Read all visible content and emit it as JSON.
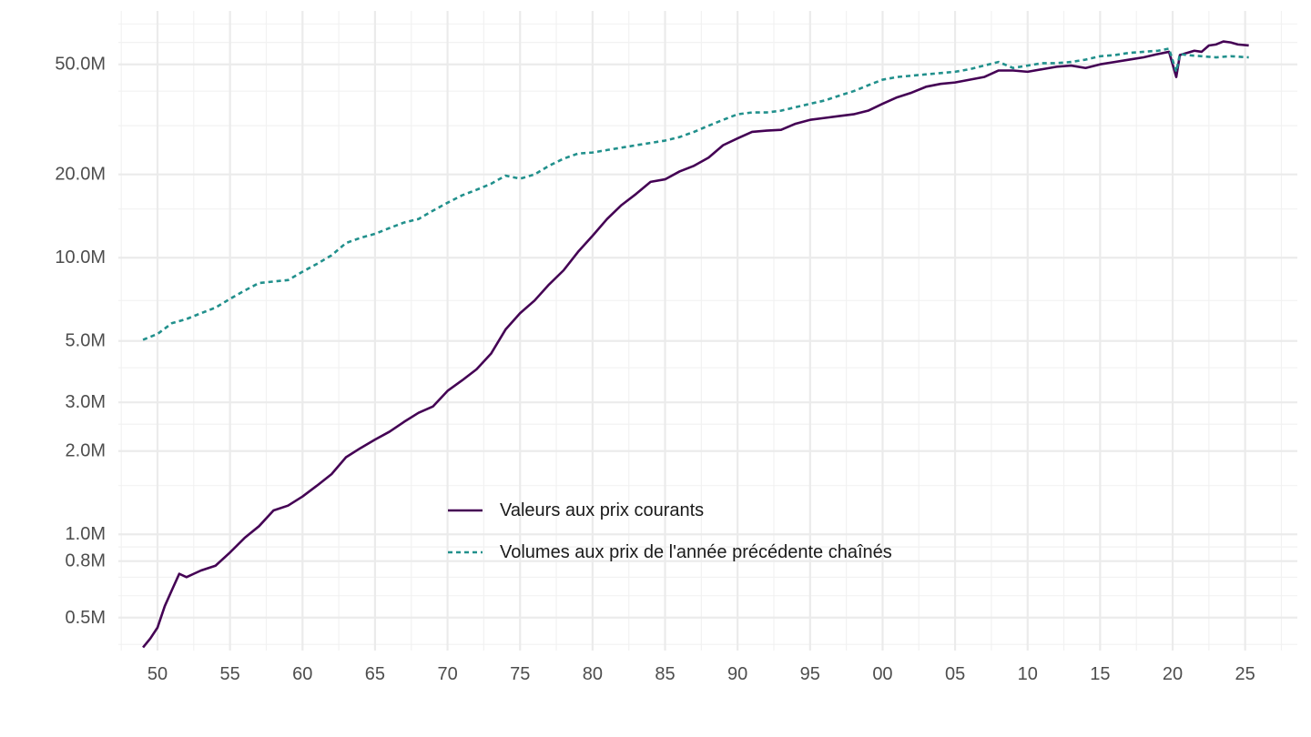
{
  "chart_data": {
    "type": "line",
    "title": "",
    "xlabel": "",
    "ylabel": "",
    "x_range": [
      1947.3,
      2028.6
    ],
    "y_scale": "log",
    "y_range": [
      0.38,
      78
    ],
    "grid": true,
    "legend_position": "bottom-center-inside",
    "x_ticks": [
      {
        "value": 1950,
        "label": "50"
      },
      {
        "value": 1955,
        "label": "55"
      },
      {
        "value": 1960,
        "label": "60"
      },
      {
        "value": 1965,
        "label": "65"
      },
      {
        "value": 1970,
        "label": "70"
      },
      {
        "value": 1975,
        "label": "75"
      },
      {
        "value": 1980,
        "label": "80"
      },
      {
        "value": 1985,
        "label": "85"
      },
      {
        "value": 1990,
        "label": "90"
      },
      {
        "value": 1995,
        "label": "95"
      },
      {
        "value": 2000,
        "label": "00"
      },
      {
        "value": 2005,
        "label": "05"
      },
      {
        "value": 2010,
        "label": "10"
      },
      {
        "value": 2015,
        "label": "15"
      },
      {
        "value": 2020,
        "label": "20"
      },
      {
        "value": 2025,
        "label": "25"
      }
    ],
    "y_ticks": [
      {
        "value": 0.5,
        "label": "0.5M"
      },
      {
        "value": 0.8,
        "label": "0.8M"
      },
      {
        "value": 1,
        "label": "1.0M"
      },
      {
        "value": 2,
        "label": "2.0M"
      },
      {
        "value": 3,
        "label": "3.0M"
      },
      {
        "value": 5,
        "label": "5.0M"
      },
      {
        "value": 10,
        "label": "10.0M"
      },
      {
        "value": 20,
        "label": "20.0M"
      },
      {
        "value": 50,
        "label": "50.0M"
      }
    ],
    "y_minor_gridlines": [
      0.4,
      0.6,
      0.7,
      0.9,
      1.5,
      2.5,
      4,
      7,
      15,
      30,
      40,
      60,
      70
    ],
    "series": [
      {
        "name": "Valeurs aux prix courants",
        "color": "#440154",
        "dash": "solid",
        "x": [
          1949,
          1949.5,
          1950,
          1950.5,
          1951,
          1951.5,
          1952,
          1952.5,
          1953,
          1954,
          1955,
          1956,
          1957,
          1958,
          1959,
          1960,
          1961,
          1962,
          1963,
          1964,
          1965,
          1966,
          1967,
          1968,
          1969,
          1970,
          1971,
          1972,
          1973,
          1974,
          1975,
          1976,
          1977,
          1978,
          1979,
          1980,
          1981,
          1982,
          1983,
          1984,
          1985,
          1986,
          1987,
          1988,
          1989,
          1990,
          1991,
          1992,
          1993,
          1994,
          1995,
          1996,
          1997,
          1998,
          1999,
          2000,
          2001,
          2002,
          2003,
          2004,
          2005,
          2006,
          2007,
          2008,
          2009,
          2010,
          2011,
          2012,
          2013,
          2014,
          2015,
          2016,
          2017,
          2018,
          2019,
          2019.75,
          2020.25,
          2020.5,
          2021,
          2021.5,
          2022,
          2022.5,
          2023,
          2023.5,
          2024,
          2024.5,
          2025.25
        ],
        "y": [
          0.39,
          0.42,
          0.46,
          0.55,
          0.63,
          0.72,
          0.7,
          0.72,
          0.74,
          0.77,
          0.86,
          0.97,
          1.07,
          1.22,
          1.27,
          1.37,
          1.5,
          1.65,
          1.9,
          2.05,
          2.2,
          2.35,
          2.55,
          2.75,
          2.9,
          3.3,
          3.6,
          3.95,
          4.5,
          5.5,
          6.3,
          7.0,
          8.0,
          9.0,
          10.5,
          12.0,
          13.8,
          15.5,
          17.0,
          18.8,
          19.2,
          20.5,
          21.5,
          23.0,
          25.5,
          27.0,
          28.5,
          28.8,
          29.0,
          30.5,
          31.5,
          32.0,
          32.5,
          33.0,
          34.0,
          36.0,
          38.0,
          39.5,
          41.5,
          42.5,
          43.0,
          44.0,
          45.0,
          47.5,
          47.5,
          47.0,
          48.0,
          49.0,
          49.5,
          48.5,
          50.0,
          51.0,
          52.0,
          53.0,
          54.5,
          55.5,
          45.0,
          54.0,
          55.0,
          56.0,
          55.5,
          58.5,
          59.0,
          60.5,
          60.0,
          59.0,
          58.5
        ]
      },
      {
        "name": "Volumes aux prix de l'année précédente chaînés",
        "color": "#21908c",
        "dash": "dashed",
        "x": [
          1949,
          1950,
          1951,
          1952,
          1953,
          1954,
          1955,
          1956,
          1957,
          1958,
          1959,
          1960,
          1961,
          1962,
          1963,
          1964,
          1965,
          1966,
          1967,
          1968,
          1969,
          1970,
          1971,
          1972,
          1973,
          1974,
          1975,
          1976,
          1977,
          1978,
          1979,
          1980,
          1981,
          1982,
          1983,
          1984,
          1985,
          1986,
          1987,
          1988,
          1989,
          1990,
          1991,
          1992,
          1993,
          1994,
          1995,
          1996,
          1997,
          1998,
          1999,
          2000,
          2001,
          2002,
          2003,
          2004,
          2005,
          2006,
          2007,
          2008,
          2009,
          2010,
          2011,
          2012,
          2013,
          2014,
          2015,
          2016,
          2017,
          2018,
          2019,
          2019.75,
          2020.25,
          2020.5,
          2021,
          2022,
          2023,
          2024,
          2025.25
        ],
        "y": [
          5.05,
          5.3,
          5.8,
          6.0,
          6.3,
          6.6,
          7.1,
          7.6,
          8.1,
          8.2,
          8.3,
          8.9,
          9.5,
          10.2,
          11.3,
          11.8,
          12.2,
          12.8,
          13.4,
          13.8,
          14.8,
          15.8,
          16.8,
          17.6,
          18.5,
          19.8,
          19.3,
          20.0,
          21.5,
          22.8,
          23.8,
          24.0,
          24.5,
          25.0,
          25.5,
          26.0,
          26.5,
          27.3,
          28.5,
          30.0,
          31.5,
          33.0,
          33.5,
          33.5,
          34.0,
          35.0,
          36.0,
          37.0,
          38.5,
          40.0,
          42.0,
          44.0,
          45.0,
          45.5,
          46.0,
          46.5,
          47.0,
          48.0,
          49.5,
          51.0,
          48.5,
          49.5,
          50.5,
          50.5,
          51.0,
          52.0,
          53.5,
          54.0,
          55.0,
          55.5,
          56.0,
          57.0,
          47.0,
          54.5,
          54.0,
          53.5,
          53.0,
          53.5,
          53.0
        ]
      }
    ]
  }
}
